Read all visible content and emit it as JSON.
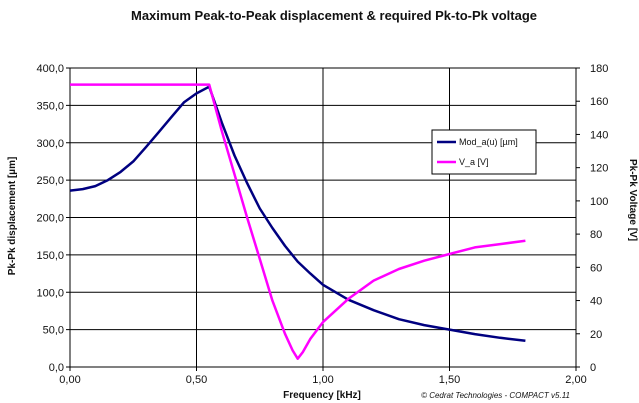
{
  "chart_data": {
    "type": "line",
    "title": "Maximum Peak-to-Peak displacement & required Pk-to-Pk voltage",
    "xlabel": "Frequency [kHz]",
    "ylabel": "Pk-Pk displacement  [µm]",
    "y2label": "Pk-Pk Voltage [V]",
    "xlim": [
      0,
      2
    ],
    "ylim": [
      0,
      400
    ],
    "y2lim": [
      0,
      180
    ],
    "x_ticks": [
      "0,00",
      "0,50",
      "1,00",
      "1,50",
      "2,00"
    ],
    "y_ticks": [
      "0,0",
      "50,0",
      "100,0",
      "150,0",
      "200,0",
      "250,0",
      "300,0",
      "350,0",
      "400,0"
    ],
    "y2_ticks": [
      "0",
      "20",
      "40",
      "60",
      "80",
      "100",
      "120",
      "140",
      "160",
      "180"
    ],
    "grid": true,
    "legend_position": "right",
    "credit": "© Cedrat Technologies - COMPACT v5.11",
    "series": [
      {
        "name": "Mod_a(u) [µm]",
        "axis": "left",
        "color": "#000080",
        "x": [
          0,
          0.05,
          0.1,
          0.15,
          0.2,
          0.25,
          0.3,
          0.35,
          0.4,
          0.45,
          0.5,
          0.55,
          0.6,
          0.65,
          0.7,
          0.75,
          0.8,
          0.85,
          0.9,
          0.95,
          1.0,
          1.1,
          1.2,
          1.3,
          1.4,
          1.5,
          1.6,
          1.7,
          1.8
        ],
        "y": [
          236,
          238,
          242,
          250,
          261,
          275,
          294,
          314,
          334,
          354,
          366,
          375,
          327,
          283,
          246,
          212,
          186,
          162,
          141,
          125,
          110,
          90,
          76,
          64,
          56,
          50,
          44,
          39,
          35
        ]
      },
      {
        "name": "V_a [V]",
        "axis": "right",
        "color": "#ff00ff",
        "x": [
          0,
          0.1,
          0.2,
          0.3,
          0.4,
          0.5,
          0.55,
          0.6,
          0.65,
          0.7,
          0.75,
          0.8,
          0.85,
          0.88,
          0.9,
          0.92,
          0.95,
          1.0,
          1.1,
          1.2,
          1.3,
          1.4,
          1.5,
          1.6,
          1.7,
          1.8
        ],
        "y": [
          170,
          170,
          170,
          170,
          170,
          170,
          170,
          142,
          116,
          90,
          65,
          40,
          20,
          10,
          5,
          9,
          17,
          27,
          41,
          52,
          59,
          64,
          68,
          72,
          74,
          76
        ]
      }
    ]
  }
}
